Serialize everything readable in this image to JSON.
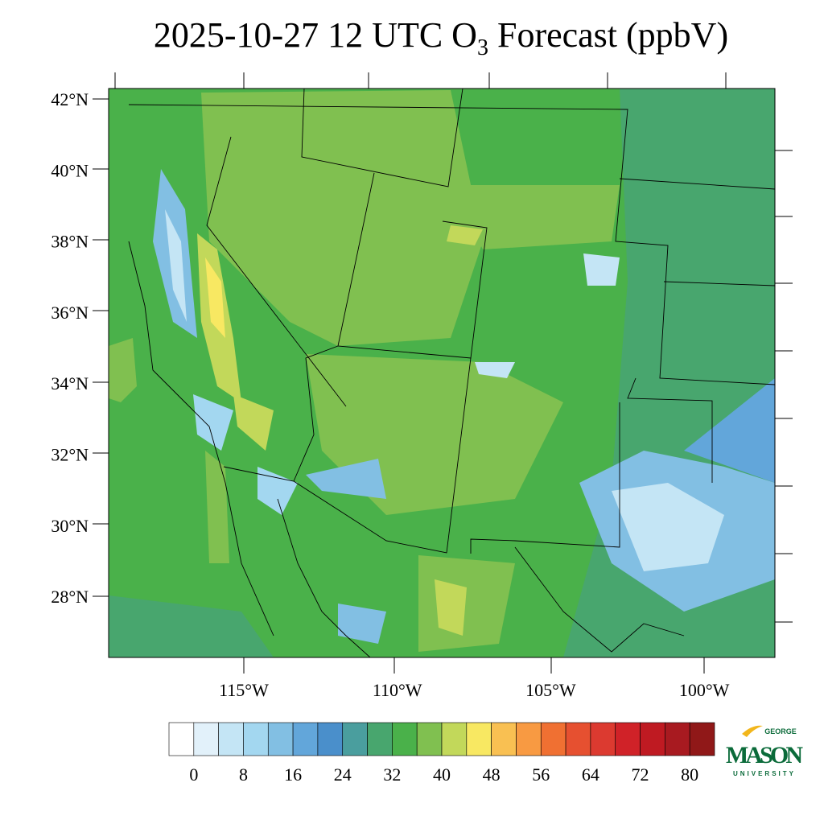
{
  "title": {
    "main": "2025-10-27 12 UTC O",
    "subscript": "3",
    "rest": " Forecast (ppbV)"
  },
  "lat_labels": [
    "42°N",
    "40°N",
    "38°N",
    "36°N",
    "34°N",
    "32°N",
    "30°N",
    "28°N"
  ],
  "lon_labels": [
    "115°W",
    "110°W",
    "105°W",
    "100°W"
  ],
  "colorbar": {
    "colors": [
      "#ffffff",
      "#e2f1fa",
      "#c4e5f5",
      "#a3d7f0",
      "#82bfe3",
      "#62a6da",
      "#4a8fcb",
      "#4a9e9e",
      "#48a66e",
      "#4ab14a",
      "#80c050",
      "#c2d85a",
      "#f8e862",
      "#f9c052",
      "#f89a42",
      "#f07032",
      "#e65030",
      "#dc3a30",
      "#d02228",
      "#bf1a22",
      "#a81a20",
      "#901818"
    ],
    "ticks": [
      0,
      8,
      16,
      24,
      32,
      40,
      48,
      56,
      64,
      72,
      80
    ]
  },
  "logo": {
    "top": "GEORGE",
    "main": "MASON",
    "bottom": "UNIVERSITY"
  }
}
